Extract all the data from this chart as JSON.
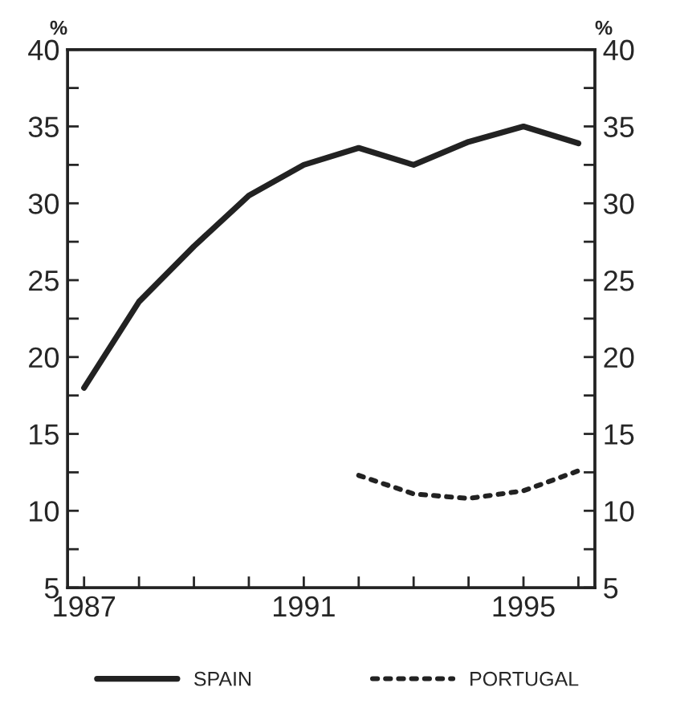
{
  "chart_data": {
    "type": "line",
    "x": [
      1987,
      1988,
      1989,
      1990,
      1991,
      1992,
      1993,
      1994,
      1995,
      1996
    ],
    "series": [
      {
        "name": "SPAIN",
        "color": "#222222",
        "line_style": "solid",
        "values": [
          18.0,
          23.6,
          27.2,
          30.5,
          32.5,
          33.6,
          32.5,
          34.0,
          35.0,
          33.9
        ]
      },
      {
        "name": "PORTUGAL",
        "color": "#222222",
        "line_style": "dotted",
        "values": [
          null,
          null,
          null,
          null,
          null,
          12.3,
          11.1,
          10.8,
          11.3,
          12.6
        ]
      }
    ],
    "ylabel": "%",
    "y2label": "%",
    "xlim": [
      1986.7,
      1996.3
    ],
    "xticks": [
      1987,
      {
        "value": 1988,
        "label": null
      },
      {
        "value": 1989,
        "label": null
      },
      {
        "value": 1990,
        "label": null
      },
      1991,
      {
        "value": 1992,
        "label": null
      },
      {
        "value": 1993,
        "label": null
      },
      {
        "value": 1994,
        "label": null
      },
      1995,
      {
        "value": 1996,
        "label": null
      }
    ],
    "ylim": [
      5,
      40
    ],
    "yticks": [
      5,
      {
        "value": 7.5,
        "label": null
      },
      10,
      {
        "value": 12.5,
        "label": null
      },
      15,
      {
        "value": 17.5,
        "label": null
      },
      20,
      {
        "value": 22.5,
        "label": null
      },
      25,
      {
        "value": 27.5,
        "label": null
      },
      30,
      {
        "value": 32.5,
        "label": null
      },
      35,
      {
        "value": 37.5,
        "label": null
      },
      40
    ],
    "y2lim": [
      5,
      40
    ],
    "y2ticks": [
      5,
      {
        "value": 7.5,
        "label": null
      },
      10,
      {
        "value": 12.5,
        "label": null
      },
      15,
      {
        "value": 17.5,
        "label": null
      },
      20,
      {
        "value": 22.5,
        "label": null
      },
      25,
      {
        "value": 27.5,
        "label": null
      },
      30,
      {
        "value": 32.5,
        "label": null
      },
      35,
      {
        "value": 37.5,
        "label": null
      },
      40
    ],
    "grid": false,
    "legend": "bottom",
    "marker": "none"
  }
}
